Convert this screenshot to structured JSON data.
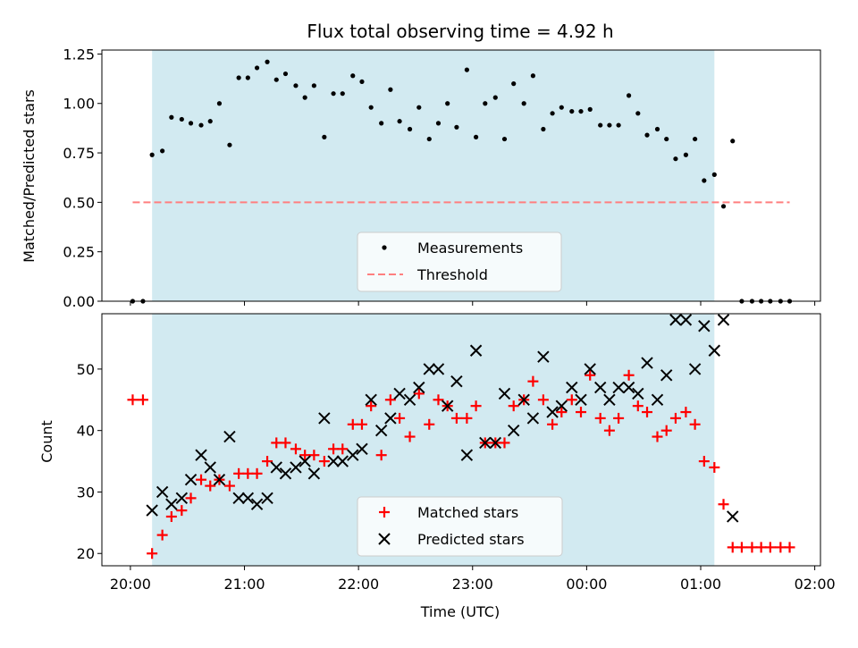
{
  "chart_data": [
    {
      "type": "scatter",
      "title": "Flux total observing time = 4.92 h",
      "xlabel": "",
      "ylabel": "Matched/Predicted stars",
      "ylim": [
        0,
        1.27
      ],
      "yticks": [
        0.0,
        0.25,
        0.5,
        0.75,
        1.0,
        1.25
      ],
      "ytick_labels": [
        "0.00",
        "0.25",
        "0.50",
        "0.75",
        "1.00",
        "1.25"
      ],
      "x_axis_unit": "hours from 20:00 UTC",
      "xlim": [
        -0.25,
        6.05
      ],
      "shaded_region": {
        "x_start": 0.19,
        "x_end": 5.12,
        "color": "#add8e6"
      },
      "legend_position": "lower-center",
      "series": [
        {
          "name": "Measurements",
          "marker": "dot",
          "color": "#000000",
          "x": [
            0.02,
            0.11,
            0.19,
            0.28,
            0.36,
            0.45,
            0.53,
            0.62,
            0.7,
            0.78,
            0.87,
            0.95,
            1.03,
            1.11,
            1.2,
            1.28,
            1.36,
            1.45,
            1.53,
            1.61,
            1.7,
            1.78,
            1.86,
            1.95,
            2.03,
            2.11,
            2.2,
            2.28,
            2.36,
            2.45,
            2.53,
            2.62,
            2.7,
            2.78,
            2.86,
            2.95,
            3.03,
            3.11,
            3.2,
            3.28,
            3.36,
            3.45,
            3.53,
            3.62,
            3.7,
            3.78,
            3.87,
            3.95,
            4.03,
            4.12,
            4.2,
            4.28,
            4.37,
            4.45,
            4.53,
            4.62,
            4.7,
            4.78,
            4.87,
            4.95,
            5.03,
            5.12,
            5.2,
            5.28,
            5.36,
            5.45,
            5.53,
            5.61,
            5.7,
            5.78
          ],
          "y": [
            0.0,
            0.0,
            0.74,
            0.76,
            0.93,
            0.92,
            0.9,
            0.89,
            0.91,
            1.0,
            0.79,
            1.13,
            1.13,
            1.18,
            1.21,
            1.12,
            1.15,
            1.09,
            1.03,
            1.09,
            0.83,
            1.05,
            1.05,
            1.14,
            1.11,
            0.98,
            0.9,
            1.07,
            0.91,
            0.87,
            0.98,
            0.82,
            0.9,
            1.0,
            0.88,
            1.17,
            0.83,
            1.0,
            1.03,
            0.82,
            1.1,
            1.0,
            1.14,
            0.87,
            0.95,
            0.98,
            0.96,
            0.96,
            0.97,
            0.89,
            0.89,
            0.89,
            1.04,
            0.95,
            0.84,
            0.87,
            0.82,
            0.72,
            0.74,
            0.82,
            0.61,
            0.64,
            0.48,
            0.81,
            0.0,
            0.0,
            0.0,
            0.0,
            0.0,
            0.0
          ]
        },
        {
          "name": "Threshold",
          "marker": "dashed-line",
          "color": "#ff7f7f",
          "x": [
            0.02,
            5.78
          ],
          "y": [
            0.5,
            0.5
          ]
        }
      ]
    },
    {
      "type": "scatter",
      "title": "",
      "xlabel": "Time (UTC)",
      "ylabel": "Count",
      "ylim": [
        18,
        59
      ],
      "yticks": [
        20,
        30,
        40,
        50
      ],
      "ytick_labels": [
        "20",
        "30",
        "40",
        "50"
      ],
      "xticks": [
        0,
        1,
        2,
        3,
        4,
        5,
        6
      ],
      "xtick_labels": [
        "20:00",
        "21:00",
        "22:00",
        "23:00",
        "00:00",
        "01:00",
        "02:00"
      ],
      "xlim": [
        -0.25,
        6.05
      ],
      "shaded_region": {
        "x_start": 0.19,
        "x_end": 5.12,
        "color": "#add8e6"
      },
      "legend_position": "lower-center",
      "series": [
        {
          "name": "Matched stars",
          "marker": "plus",
          "color": "#ff0000",
          "x": [
            0.02,
            0.11,
            0.19,
            0.28,
            0.36,
            0.45,
            0.53,
            0.62,
            0.7,
            0.78,
            0.87,
            0.95,
            1.03,
            1.11,
            1.2,
            1.28,
            1.36,
            1.45,
            1.53,
            1.61,
            1.7,
            1.78,
            1.86,
            1.95,
            2.03,
            2.11,
            2.2,
            2.28,
            2.36,
            2.45,
            2.53,
            2.62,
            2.7,
            2.78,
            2.86,
            2.95,
            3.03,
            3.11,
            3.2,
            3.28,
            3.36,
            3.45,
            3.53,
            3.62,
            3.7,
            3.78,
            3.87,
            3.95,
            4.03,
            4.12,
            4.2,
            4.28,
            4.37,
            4.45,
            4.53,
            4.62,
            4.7,
            4.78,
            4.87,
            4.95,
            5.03,
            5.12,
            5.2,
            5.28,
            5.36,
            5.45,
            5.53,
            5.61,
            5.7,
            5.78
          ],
          "y": [
            45,
            45,
            20,
            23,
            26,
            27,
            29,
            32,
            31,
            32,
            31,
            33,
            33,
            33,
            35,
            38,
            38,
            37,
            36,
            36,
            35,
            37,
            37,
            41,
            41,
            44,
            36,
            45,
            42,
            39,
            46,
            41,
            45,
            44,
            42,
            42,
            44,
            38,
            38,
            38,
            44,
            45,
            48,
            45,
            41,
            43,
            45,
            43,
            49,
            42,
            40,
            42,
            49,
            44,
            43,
            39,
            40,
            42,
            43,
            41,
            35,
            34,
            28,
            21,
            21,
            21,
            21,
            21,
            21,
            21
          ]
        },
        {
          "name": "Predicted stars",
          "marker": "x",
          "color": "#000000",
          "x": [
            0.19,
            0.28,
            0.36,
            0.45,
            0.53,
            0.62,
            0.7,
            0.78,
            0.87,
            0.95,
            1.03,
            1.11,
            1.2,
            1.28,
            1.36,
            1.45,
            1.53,
            1.61,
            1.7,
            1.78,
            1.86,
            1.95,
            2.03,
            2.11,
            2.2,
            2.28,
            2.36,
            2.45,
            2.53,
            2.62,
            2.7,
            2.78,
            2.86,
            2.95,
            3.03,
            3.11,
            3.2,
            3.28,
            3.36,
            3.45,
            3.53,
            3.62,
            3.7,
            3.78,
            3.87,
            3.95,
            4.03,
            4.12,
            4.2,
            4.28,
            4.37,
            4.45,
            4.53,
            4.62,
            4.7,
            4.78,
            4.87,
            4.95,
            5.03,
            5.12,
            5.2,
            5.28
          ],
          "y": [
            27,
            30,
            28,
            29,
            32,
            36,
            34,
            32,
            39,
            29,
            29,
            28,
            29,
            34,
            33,
            34,
            35,
            33,
            42,
            35,
            35,
            36,
            37,
            45,
            40,
            42,
            46,
            45,
            47,
            50,
            50,
            44,
            48,
            36,
            53,
            38,
            38,
            46,
            40,
            45,
            42,
            52,
            43,
            44,
            47,
            45,
            50,
            47,
            45,
            47,
            47,
            46,
            51,
            45,
            49,
            58,
            58,
            50,
            57,
            53,
            58,
            26
          ]
        }
      ]
    }
  ]
}
